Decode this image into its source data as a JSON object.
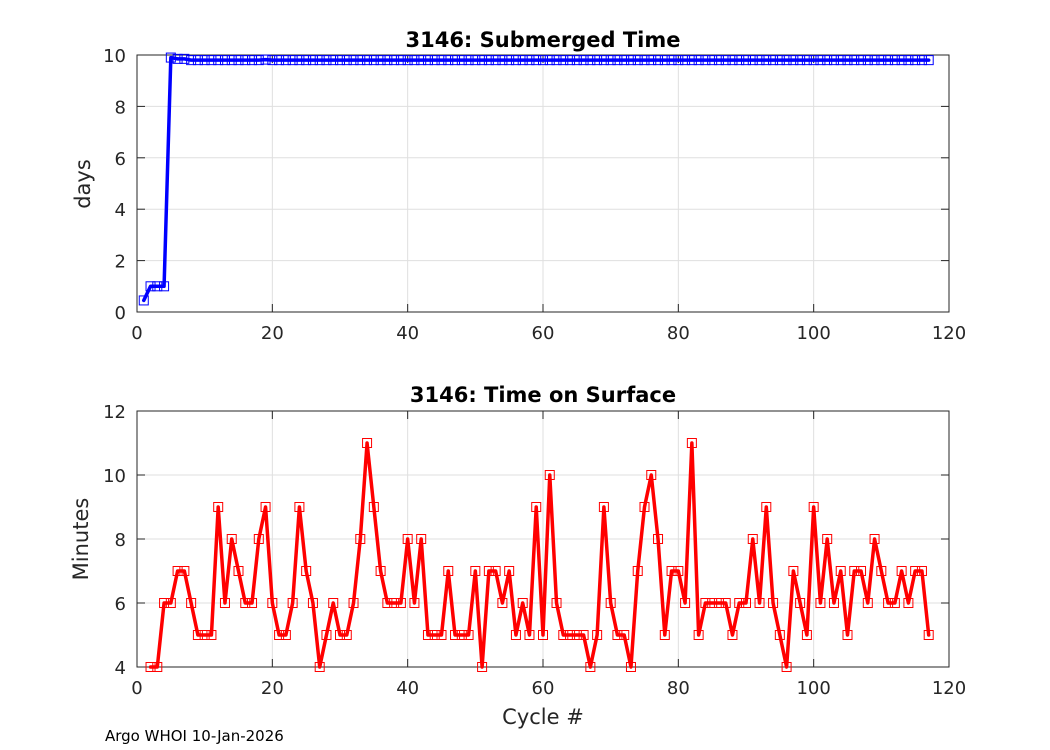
{
  "footer": "Argo WHOI 10-Jan-2026",
  "chart_data": [
    {
      "type": "line",
      "title": "3146: Submerged Time",
      "xlabel": "",
      "ylabel": "days",
      "xlim": [
        0,
        120
      ],
      "ylim": [
        0,
        10
      ],
      "xticks": [
        "0",
        "20",
        "40",
        "60",
        "80",
        "100",
        "120"
      ],
      "yticks": [
        "0",
        "2",
        "4",
        "6",
        "8",
        "10"
      ],
      "grid": true,
      "color": "#0000ff",
      "marker": "square",
      "x": [
        1,
        2,
        3,
        4,
        5,
        6,
        7,
        8,
        9,
        10,
        11,
        12,
        13,
        14,
        15,
        16,
        17,
        18,
        19,
        20,
        21,
        22,
        23,
        24,
        25,
        26,
        27,
        28,
        29,
        30,
        31,
        32,
        33,
        34,
        35,
        36,
        37,
        38,
        39,
        40,
        41,
        42,
        43,
        44,
        45,
        46,
        47,
        48,
        49,
        50,
        51,
        52,
        53,
        54,
        55,
        56,
        57,
        58,
        59,
        60,
        61,
        62,
        63,
        64,
        65,
        66,
        67,
        68,
        69,
        70,
        71,
        72,
        73,
        74,
        75,
        76,
        77,
        78,
        79,
        80,
        81,
        82,
        83,
        84,
        85,
        86,
        87,
        88,
        89,
        90,
        91,
        92,
        93,
        94,
        95,
        96,
        97,
        98,
        99,
        100,
        101,
        102,
        103,
        104,
        105,
        106,
        107,
        108,
        109,
        110,
        111,
        112,
        113,
        114,
        115,
        116,
        117
      ],
      "y": [
        0.45,
        1.0,
        1.0,
        1.0,
        9.9,
        9.85,
        9.85,
        9.8,
        9.8,
        9.8,
        9.8,
        9.8,
        9.8,
        9.8,
        9.8,
        9.8,
        9.8,
        9.8,
        9.82,
        9.8,
        9.8,
        9.8,
        9.8,
        9.8,
        9.8,
        9.8,
        9.8,
        9.8,
        9.8,
        9.8,
        9.8,
        9.8,
        9.8,
        9.8,
        9.8,
        9.8,
        9.8,
        9.8,
        9.8,
        9.8,
        9.8,
        9.8,
        9.8,
        9.8,
        9.8,
        9.8,
        9.8,
        9.8,
        9.8,
        9.8,
        9.8,
        9.8,
        9.8,
        9.8,
        9.8,
        9.8,
        9.8,
        9.8,
        9.8,
        9.8,
        9.8,
        9.8,
        9.8,
        9.8,
        9.8,
        9.8,
        9.8,
        9.8,
        9.8,
        9.8,
        9.8,
        9.8,
        9.8,
        9.8,
        9.8,
        9.8,
        9.8,
        9.8,
        9.8,
        9.8,
        9.8,
        9.8,
        9.8,
        9.8,
        9.8,
        9.8,
        9.8,
        9.8,
        9.8,
        9.8,
        9.8,
        9.8,
        9.8,
        9.8,
        9.8,
        9.8,
        9.8,
        9.8,
        9.8,
        9.8,
        9.8,
        9.8,
        9.8,
        9.8,
        9.8,
        9.8,
        9.8,
        9.8,
        9.8,
        9.8,
        9.8,
        9.8,
        9.8,
        9.8,
        9.8,
        9.8,
        9.8
      ]
    },
    {
      "type": "line",
      "title": "3146: Time on Surface",
      "xlabel": "Cycle #",
      "ylabel": "Minutes",
      "xlim": [
        0,
        120
      ],
      "ylim": [
        4,
        12
      ],
      "xticks": [
        "0",
        "20",
        "40",
        "60",
        "80",
        "100",
        "120"
      ],
      "yticks": [
        "4",
        "6",
        "8",
        "10",
        "12"
      ],
      "grid": true,
      "color": "#ff0000",
      "marker": "square",
      "x": [
        2,
        3,
        4,
        5,
        6,
        7,
        8,
        9,
        10,
        11,
        12,
        13,
        14,
        15,
        16,
        17,
        18,
        19,
        20,
        21,
        22,
        23,
        24,
        25,
        26,
        27,
        28,
        29,
        30,
        31,
        32,
        33,
        34,
        35,
        36,
        37,
        38,
        39,
        40,
        41,
        42,
        43,
        44,
        45,
        46,
        47,
        48,
        49,
        50,
        51,
        52,
        53,
        54,
        55,
        56,
        57,
        58,
        59,
        60,
        61,
        62,
        63,
        64,
        65,
        66,
        67,
        68,
        69,
        70,
        71,
        72,
        73,
        74,
        75,
        76,
        77,
        78,
        79,
        80,
        81,
        82,
        83,
        84,
        85,
        86,
        87,
        88,
        89,
        90,
        91,
        92,
        93,
        94,
        95,
        96,
        97,
        98,
        99,
        100,
        101,
        102,
        103,
        104,
        105,
        106,
        107,
        108,
        109,
        110,
        111,
        112,
        113,
        114,
        115,
        116,
        117
      ],
      "y": [
        4,
        4,
        6,
        6,
        7,
        7,
        6,
        5,
        5,
        5,
        9,
        6,
        8,
        7,
        6,
        6,
        8,
        9,
        6,
        5,
        5,
        6,
        9,
        7,
        6,
        4,
        5,
        6,
        5,
        5,
        6,
        8,
        11,
        9,
        7,
        6,
        6,
        6,
        8,
        6,
        8,
        5,
        5,
        5,
        7,
        5,
        5,
        5,
        7,
        4,
        7,
        7,
        6,
        7,
        5,
        6,
        5,
        9,
        5,
        10,
        6,
        5,
        5,
        5,
        5,
        4,
        5,
        9,
        6,
        5,
        5,
        4,
        7,
        9,
        10,
        8,
        5,
        7,
        7,
        6,
        11,
        5,
        6,
        6,
        6,
        6,
        5,
        6,
        6,
        8,
        6,
        9,
        6,
        5,
        4,
        7,
        6,
        5,
        9,
        6,
        8,
        6,
        7,
        5,
        7,
        7,
        6,
        8,
        7,
        6,
        6,
        7,
        6,
        7,
        7,
        5
      ]
    }
  ]
}
